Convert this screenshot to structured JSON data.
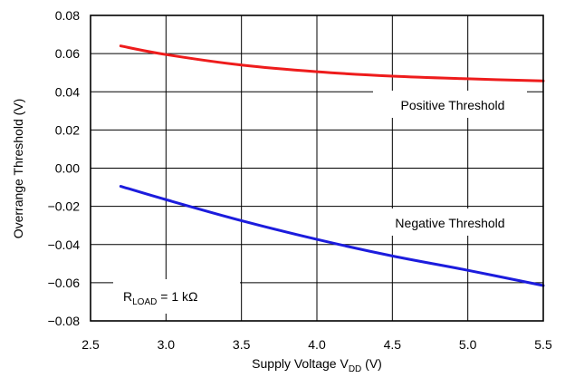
{
  "chart_data": {
    "type": "line",
    "xlabel": {
      "main": "Supply Voltage V",
      "sub": "DD",
      "unit": " (V)"
    },
    "ylabel": "Overrange Threshold (V)",
    "xlim": [
      2.5,
      5.5
    ],
    "ylim": [
      -0.08,
      0.08
    ],
    "x_ticks": [
      "2.5",
      "3.0",
      "3.5",
      "4.0",
      "4.5",
      "5.0",
      "5.5"
    ],
    "y_ticks": [
      "0.08",
      "0.06",
      "0.04",
      "0.02",
      "0.00",
      "−0.02",
      "−0.04",
      "−0.06",
      "−0.08"
    ],
    "grid": true,
    "annotation": {
      "main": "R",
      "sub": "LOAD",
      "rest": " = 1 kΩ"
    },
    "series": [
      {
        "name": "Positive Threshold",
        "color": "#ee1c1c",
        "x": [
          2.7,
          3.0,
          3.5,
          4.0,
          4.5,
          5.0,
          5.5
        ],
        "y": [
          0.064,
          0.0595,
          0.054,
          0.0505,
          0.0482,
          0.0468,
          0.0457
        ]
      },
      {
        "name": "Negative Threshold",
        "color": "#1c1cdd",
        "x": [
          2.7,
          3.0,
          3.5,
          4.0,
          4.5,
          5.0,
          5.5
        ],
        "y": [
          -0.0095,
          -0.0165,
          -0.0275,
          -0.0373,
          -0.046,
          -0.0535,
          -0.0615
        ]
      }
    ]
  }
}
